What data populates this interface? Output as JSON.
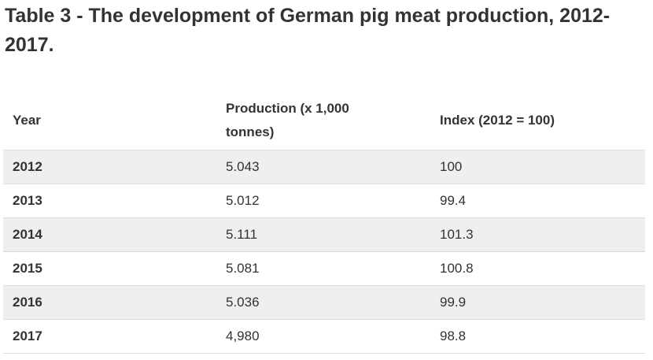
{
  "title": "Table 3 - The development of German pig meat production, 2012-2017.",
  "table": {
    "headers": {
      "year": "Year",
      "production": "Production (x 1,000 tonnes)",
      "index": "Index (2012 = 100)"
    },
    "rows": [
      {
        "year": "2012",
        "production": "5.043",
        "index": "100"
      },
      {
        "year": "2013",
        "production": "5.012",
        "index": "99.4"
      },
      {
        "year": "2014",
        "production": "5.111",
        "index": "101.3"
      },
      {
        "year": "2015",
        "production": "5.081",
        "index": "100.8"
      },
      {
        "year": "2016",
        "production": "5.036",
        "index": "99.9"
      },
      {
        "year": "2017",
        "production": "4,980",
        "index": "98.8"
      }
    ]
  }
}
